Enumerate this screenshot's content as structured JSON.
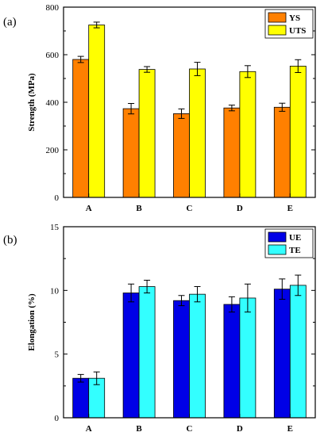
{
  "panels": [
    {
      "panel_label": "(a)",
      "chart_data": {
        "type": "bar",
        "categories": [
          "A",
          "B",
          "C",
          "D",
          "E"
        ],
        "ylabel": "Strength (MPa)",
        "xlabel": "",
        "ylim": [
          0,
          800
        ],
        "yticks": [
          "0",
          "200",
          "400",
          "600",
          "800"
        ],
        "legend_position": "top-right",
        "grid": false,
        "series": [
          {
            "name": "YS",
            "color": "#ff8000",
            "values": [
              580,
              373,
              352,
              376,
              379
            ],
            "errors": [
              13,
              22,
              20,
              12,
              17
            ]
          },
          {
            "name": "UTS",
            "color": "#ffff00",
            "values": [
              725,
              538,
              540,
              529,
              552
            ],
            "errors": [
              12,
              12,
              28,
              25,
              27
            ]
          }
        ]
      }
    },
    {
      "panel_label": "(b)",
      "chart_data": {
        "type": "bar",
        "categories": [
          "A",
          "B",
          "C",
          "D",
          "E"
        ],
        "ylabel": "Elongation (%)",
        "xlabel": "",
        "ylim": [
          0,
          15
        ],
        "yticks": [
          "0",
          "5",
          "10",
          "15"
        ],
        "legend_position": "top-right",
        "grid": false,
        "series": [
          {
            "name": "UE",
            "color": "#0000e6",
            "values": [
              3.1,
              9.8,
              9.2,
              8.9,
              10.1
            ],
            "errors": [
              0.3,
              0.7,
              0.4,
              0.6,
              0.8
            ]
          },
          {
            "name": "TE",
            "color": "#33ffff",
            "values": [
              3.1,
              10.3,
              9.7,
              9.4,
              10.4
            ],
            "errors": [
              0.5,
              0.5,
              0.6,
              1.1,
              0.8
            ]
          }
        ]
      }
    }
  ]
}
